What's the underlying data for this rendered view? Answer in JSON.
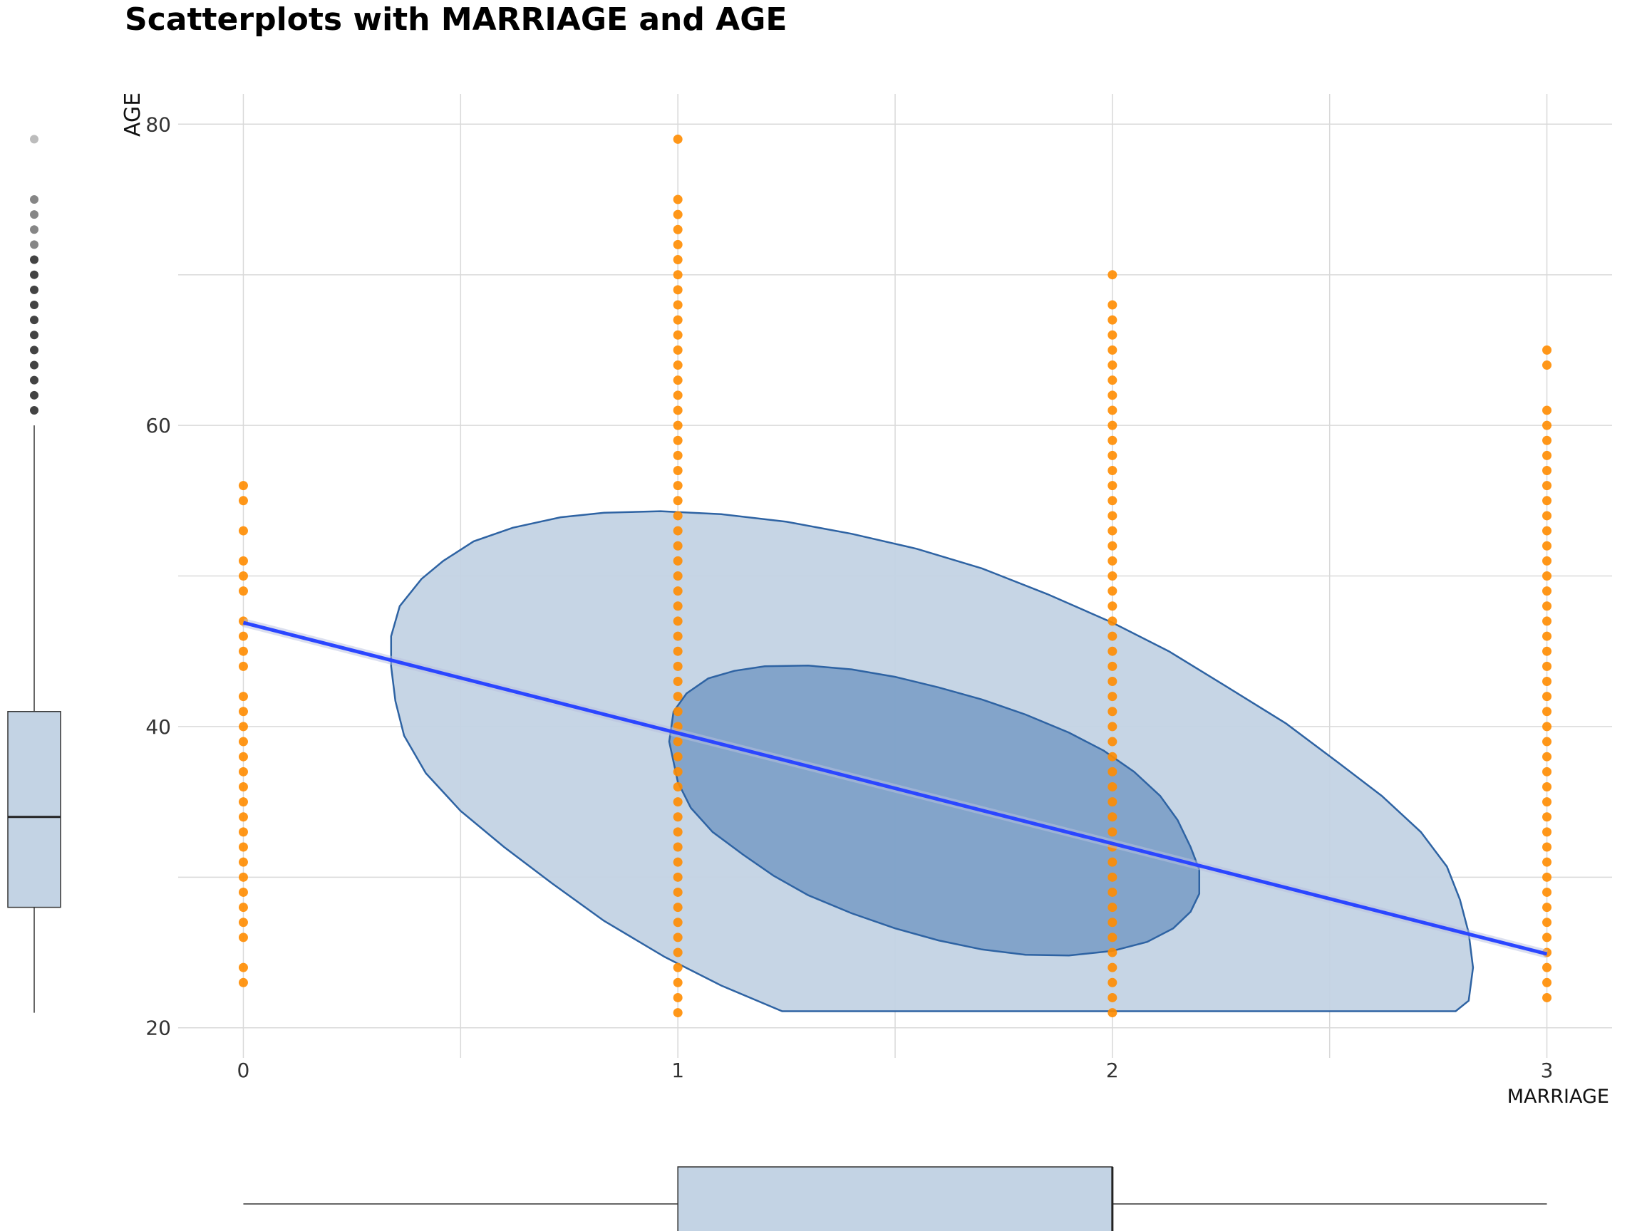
{
  "chart_data": {
    "type": "scatter",
    "title": "Scatterplots with MARRIAGE and AGE",
    "xlabel": "MARRIAGE",
    "ylabel": "AGE",
    "xlim": [
      -0.15,
      3.15
    ],
    "ylim": [
      18,
      82
    ],
    "x_ticks": [
      "0",
      "1",
      "2",
      "3"
    ],
    "y_ticks": [
      "20",
      "40",
      "60",
      "80"
    ],
    "grid": true,
    "point_color": "#ff8c00",
    "density_color_outer": "#c3d3e4",
    "density_color_inner": "#7b9fc6",
    "density_stroke": "#2e63a3",
    "regression_color": "#2b46ff",
    "series": [
      {
        "x": 0,
        "ages": [
          23,
          24,
          26,
          27,
          28,
          29,
          30,
          31,
          32,
          33,
          34,
          35,
          36,
          37,
          38,
          39,
          40,
          41,
          42,
          44,
          45,
          46,
          47,
          49,
          50,
          51,
          53,
          55,
          56
        ]
      },
      {
        "x": 1,
        "ages": [
          21,
          22,
          23,
          24,
          25,
          26,
          27,
          28,
          29,
          30,
          31,
          32,
          33,
          34,
          35,
          36,
          37,
          38,
          39,
          40,
          41,
          42,
          43,
          44,
          45,
          46,
          47,
          48,
          49,
          50,
          51,
          52,
          53,
          54,
          55,
          56,
          57,
          58,
          59,
          60,
          61,
          62,
          63,
          64,
          65,
          66,
          67,
          68,
          69,
          70,
          71,
          72,
          73,
          74,
          75,
          79
        ]
      },
      {
        "x": 2,
        "ages": [
          21,
          22,
          23,
          24,
          25,
          26,
          27,
          28,
          29,
          30,
          31,
          32,
          33,
          34,
          35,
          36,
          37,
          38,
          39,
          40,
          41,
          42,
          43,
          44,
          45,
          46,
          47,
          48,
          49,
          50,
          51,
          52,
          53,
          54,
          55,
          56,
          57,
          58,
          59,
          60,
          61,
          62,
          63,
          64,
          65,
          66,
          67,
          68,
          70
        ]
      },
      {
        "x": 3,
        "ages": [
          22,
          23,
          24,
          25,
          26,
          27,
          28,
          29,
          30,
          31,
          32,
          33,
          34,
          35,
          36,
          37,
          38,
          39,
          40,
          41,
          42,
          43,
          44,
          45,
          46,
          47,
          48,
          49,
          50,
          51,
          52,
          53,
          54,
          55,
          56,
          57,
          58,
          59,
          60,
          61,
          64,
          65
        ]
      }
    ],
    "regression": {
      "x": [
        0,
        3
      ],
      "y": [
        46.9,
        24.9
      ]
    },
    "density_outer": [
      [
        0.34,
        44
      ],
      [
        0.34,
        46
      ],
      [
        0.36,
        48
      ],
      [
        0.41,
        49.8
      ],
      [
        0.46,
        51
      ],
      [
        0.53,
        52.3
      ],
      [
        0.62,
        53.2
      ],
      [
        0.73,
        53.9
      ],
      [
        0.83,
        54.2
      ],
      [
        0.96,
        54.3
      ],
      [
        1.1,
        54.1
      ],
      [
        1.25,
        53.6
      ],
      [
        1.4,
        52.8
      ],
      [
        1.55,
        51.8
      ],
      [
        1.7,
        50.5
      ],
      [
        1.85,
        48.8
      ],
      [
        2.0,
        46.9
      ],
      [
        2.13,
        45.0
      ],
      [
        2.26,
        42.7
      ],
      [
        2.4,
        40.2
      ],
      [
        2.52,
        37.6
      ],
      [
        2.62,
        35.4
      ],
      [
        2.71,
        33.0
      ],
      [
        2.77,
        30.7
      ],
      [
        2.8,
        28.5
      ],
      [
        2.82,
        26.3
      ],
      [
        2.83,
        24
      ],
      [
        2.82,
        21.8
      ],
      [
        2.79,
        21.1
      ],
      [
        1.24,
        21.1
      ],
      [
        1.1,
        22.8
      ],
      [
        0.97,
        24.7
      ],
      [
        0.83,
        27.1
      ],
      [
        0.71,
        29.6
      ],
      [
        0.6,
        32.0
      ],
      [
        0.5,
        34.4
      ],
      [
        0.42,
        36.9
      ],
      [
        0.37,
        39.4
      ],
      [
        0.35,
        41.7
      ]
    ],
    "density_inner": [
      [
        0.98,
        39
      ],
      [
        0.99,
        41
      ],
      [
        1.02,
        42.2
      ],
      [
        1.07,
        43.2
      ],
      [
        1.13,
        43.7
      ],
      [
        1.2,
        44
      ],
      [
        1.3,
        44.05
      ],
      [
        1.4,
        43.8
      ],
      [
        1.5,
        43.3
      ],
      [
        1.6,
        42.6
      ],
      [
        1.7,
        41.8
      ],
      [
        1.8,
        40.8
      ],
      [
        1.9,
        39.6
      ],
      [
        1.98,
        38.4
      ],
      [
        2.05,
        37.0
      ],
      [
        2.11,
        35.4
      ],
      [
        2.15,
        33.8
      ],
      [
        2.18,
        32.0
      ],
      [
        2.2,
        30.5
      ],
      [
        2.2,
        28.9
      ],
      [
        2.18,
        27.7
      ],
      [
        2.14,
        26.6
      ],
      [
        2.08,
        25.7
      ],
      [
        2.0,
        25.1
      ],
      [
        1.9,
        24.8
      ],
      [
        1.8,
        24.85
      ],
      [
        1.7,
        25.2
      ],
      [
        1.6,
        25.8
      ],
      [
        1.5,
        26.6
      ],
      [
        1.4,
        27.6
      ],
      [
        1.3,
        28.8
      ],
      [
        1.22,
        30.1
      ],
      [
        1.15,
        31.5
      ],
      [
        1.08,
        33.0
      ],
      [
        1.03,
        34.6
      ],
      [
        1.0,
        36.3
      ]
    ],
    "y_marginal_boxplot": {
      "q1": 28,
      "median": 34,
      "q3": 41,
      "whisker_low": 21,
      "whisker_high": 60,
      "outliers": [
        61,
        62,
        63,
        64,
        65,
        66,
        67,
        68,
        69,
        70,
        71,
        72,
        73,
        74,
        75,
        79
      ]
    },
    "x_marginal_boxplot": {
      "q1": 1,
      "median": 2,
      "q3": 2,
      "whisker_low": 0,
      "whisker_high": 3
    }
  }
}
